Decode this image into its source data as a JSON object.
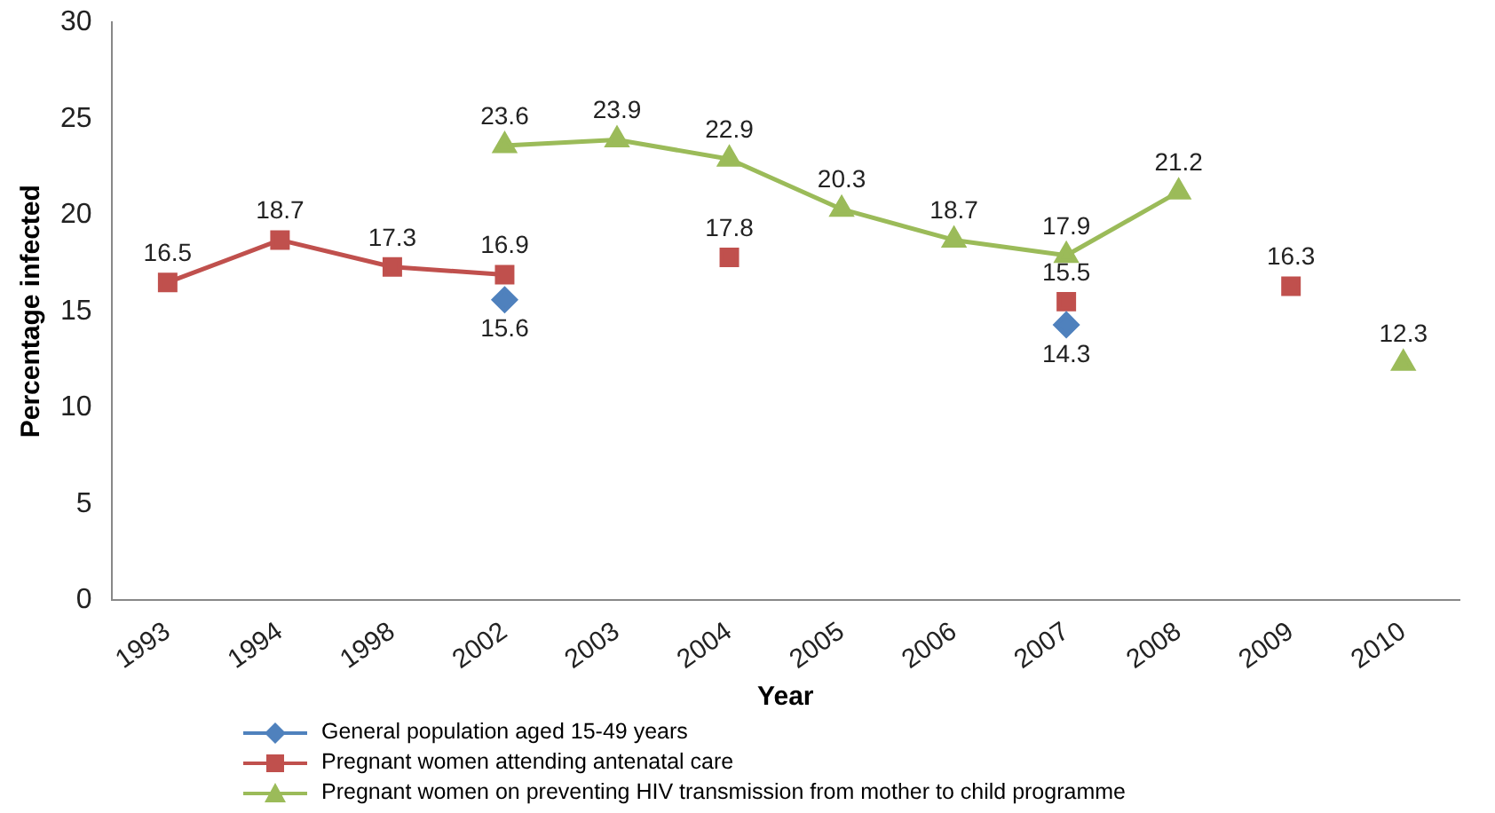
{
  "chart_data": {
    "type": "line",
    "xlabel": "Year",
    "ylabel": "Percentage infected",
    "categories": [
      "1993",
      "1994",
      "1998",
      "2002",
      "2003",
      "2004",
      "2005",
      "2006",
      "2007",
      "2008",
      "2009",
      "2010"
    ],
    "series": [
      {
        "name": "General population aged 15-49 years",
        "type": "scatter",
        "color": "#4f81bd",
        "marker": "diamond",
        "values": [
          null,
          null,
          null,
          15.6,
          null,
          null,
          null,
          null,
          14.3,
          null,
          null,
          null
        ]
      },
      {
        "name": "Pregnant women attending antenatal care",
        "color": "#c0504d",
        "marker": "square",
        "values": [
          16.5,
          18.7,
          17.3,
          16.9,
          null,
          17.8,
          null,
          null,
          15.5,
          null,
          16.3,
          null
        ]
      },
      {
        "name": "Pregnant women on preventing HIV transmission from mother to child programme",
        "color": "#9bbb59",
        "marker": "triangle",
        "values": [
          null,
          null,
          null,
          23.6,
          23.9,
          22.9,
          20.3,
          18.7,
          17.9,
          21.2,
          null,
          12.3
        ]
      }
    ],
    "ylim": [
      0,
      30
    ],
    "yticks": [
      0,
      5,
      10,
      15,
      20,
      25,
      30
    ],
    "grid": false,
    "legend": "bottom left",
    "data_labels": true
  }
}
